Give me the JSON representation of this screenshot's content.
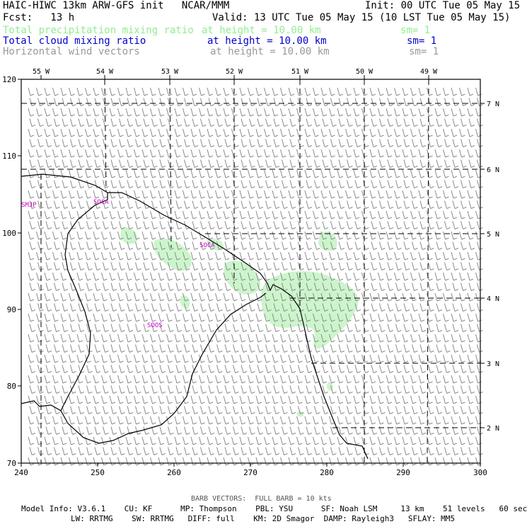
{
  "header": {
    "title": "HAIC-HIWC 13km ARW-GFS init   NCAR/MMM",
    "init": "Init: 00 UTC Tue 05 May 15",
    "fcst": "Fcst:   13 h",
    "valid": "Valid: 13 UTC Tue 05 May 15 (10 LST Tue 05 May 15)",
    "fields": [
      {
        "name": "Total precipitation mixing ratio",
        "height": "at height = 10.00 km",
        "sm": "sm= 1",
        "color": "#90ee90"
      },
      {
        "name": "Total cloud mixing ratio",
        "height": "at height = 10.00 km",
        "sm": "sm= 1",
        "color": "#0000cd"
      },
      {
        "name": "Horizontal wind vectors",
        "height": "at height = 10.00 km",
        "sm": "sm= 1",
        "color": "#999999"
      }
    ]
  },
  "map": {
    "x_ticks": [
      "240",
      "250",
      "260",
      "270",
      "280",
      "290",
      "300"
    ],
    "y_ticks": [
      "70",
      "80",
      "90",
      "100",
      "110",
      "120"
    ],
    "lon_labels": [
      "55 W",
      "54 W",
      "53 W",
      "52 W",
      "51 W",
      "50 W",
      "49 W"
    ],
    "lat_labels": [
      "7 N",
      "6 N",
      "5 N",
      "4 N",
      "3 N",
      "2 N"
    ],
    "stations": [
      "SMJP",
      "SOCA",
      "SOCA",
      "SOOS"
    ],
    "barb_color": "#8a8a8a",
    "precip_color": "#ccf5cc"
  },
  "footer": {
    "barb_note": "BARB VECTORS:  FULL BARB = 10 kts",
    "line1": "Model Info: V3.6.1    CU: KF      MP: Thompson    PBL: YSU      SF: Noah LSM     13 km    51 levels   60 sec",
    "line2": "LW: RRTMG    SW: RRTMG   DIFF: full    KM: 2D Smagor  DAMP: Rayleigh3   SFLAY: MM5"
  }
}
